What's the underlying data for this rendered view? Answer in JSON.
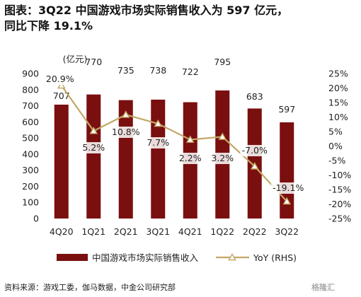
{
  "title_line1": "图表：3Q22 中国游戏市场实际销售收入为 597 亿元，",
  "title_line2": "同比下降 19.1%",
  "source": "资料来源：游戏工委，伽马数据，中金公司研究部",
  "watermark": "格隆汇",
  "colors": {
    "bar": "#7a0f0f",
    "line": "#c2a866",
    "label_box": "#ffffff"
  },
  "chart_data": {
    "type": "bar",
    "categories": [
      "4Q20",
      "1Q21",
      "2Q21",
      "3Q21",
      "4Q21",
      "1Q22",
      "2Q22",
      "3Q22"
    ],
    "left_unit": "(亿元)",
    "left_ylim": [
      0,
      900
    ],
    "left_ticks": [
      0,
      100,
      200,
      300,
      400,
      500,
      600,
      700,
      800,
      900
    ],
    "right_ylim": [
      -25,
      25
    ],
    "right_ticks": [
      -25,
      -20,
      -15,
      -10,
      -5,
      0,
      5,
      10,
      15,
      20,
      25
    ],
    "series": [
      {
        "name": "中国游戏市场实际销售收入",
        "kind": "bar",
        "axis": "left",
        "values": [
          707,
          770,
          735,
          738,
          722,
          795,
          683,
          597
        ],
        "labels": [
          "707",
          "770",
          "735",
          "738",
          "722",
          "795",
          "683",
          "597"
        ]
      },
      {
        "name": "YoY (RHS)",
        "kind": "line",
        "axis": "right",
        "values": [
          20.9,
          5.2,
          10.8,
          7.7,
          2.2,
          3.2,
          -7.0,
          -19.1
        ],
        "labels": [
          "20.9%",
          "5.2%",
          "10.8%",
          "7.7%",
          "2.2%",
          "3.2%",
          "-7.0%",
          "-19.1%"
        ]
      }
    ],
    "legend": [
      "中国游戏市场实际销售收入",
      "YoY (RHS)"
    ],
    "legend_position": "bottom"
  }
}
